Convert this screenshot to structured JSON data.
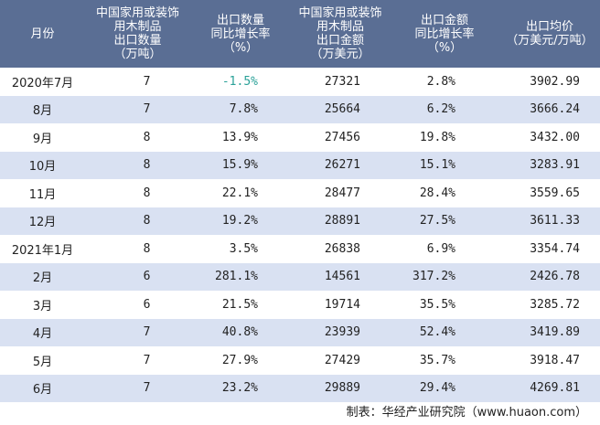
{
  "headers": [
    "月份",
    "中国家用或装饰\n用木制品\n出口数量\n（万吨）",
    "出口数量\n同比增长率\n（%）",
    "中国家用或装饰\n用木制品\n出口金额\n（万美元）",
    "出口金额\n同比增长率\n（%）",
    "出口均价\n（万美元/万吨）"
  ],
  "rows": [
    {
      "month": "2020年7月",
      "qty": "7",
      "qty_growth": "-1.5%",
      "amount": "27321",
      "amount_growth": "2.8%",
      "price": "3902.99"
    },
    {
      "month": "8月",
      "qty": "7",
      "qty_growth": "7.8%",
      "amount": "25664",
      "amount_growth": "6.2%",
      "price": "3666.24"
    },
    {
      "month": "9月",
      "qty": "8",
      "qty_growth": "13.9%",
      "amount": "27456",
      "amount_growth": "19.8%",
      "price": "3432.00"
    },
    {
      "month": "10月",
      "qty": "8",
      "qty_growth": "15.9%",
      "amount": "26271",
      "amount_growth": "15.1%",
      "price": "3283.91"
    },
    {
      "month": "11月",
      "qty": "8",
      "qty_growth": "22.1%",
      "amount": "28477",
      "amount_growth": "28.4%",
      "price": "3559.65"
    },
    {
      "month": "12月",
      "qty": "8",
      "qty_growth": "19.2%",
      "amount": "28891",
      "amount_growth": "27.5%",
      "price": "3611.33"
    },
    {
      "month": "2021年1月",
      "qty": "8",
      "qty_growth": "3.5%",
      "amount": "26838",
      "amount_growth": "6.9%",
      "price": "3354.74"
    },
    {
      "month": "2月",
      "qty": "6",
      "qty_growth": "281.1%",
      "amount": "14561",
      "amount_growth": "317.2%",
      "price": "2426.78"
    },
    {
      "month": "3月",
      "qty": "6",
      "qty_growth": "21.5%",
      "amount": "19714",
      "amount_growth": "35.5%",
      "price": "3285.72"
    },
    {
      "month": "4月",
      "qty": "7",
      "qty_growth": "40.8%",
      "amount": "23939",
      "amount_growth": "52.4%",
      "price": "3419.89"
    },
    {
      "month": "5月",
      "qty": "7",
      "qty_growth": "27.9%",
      "amount": "27429",
      "amount_growth": "35.7%",
      "price": "3918.47"
    },
    {
      "month": "6月",
      "qty": "7",
      "qty_growth": "23.2%",
      "amount": "29889",
      "amount_growth": "29.4%",
      "price": "4269.81"
    }
  ],
  "footer": "制表：华经产业研究院（www.huaon.com）",
  "colors": {
    "header_bg": "#5a6e94",
    "stripe_bg": "#d9e1f2",
    "negative_text": "#2aa198"
  }
}
